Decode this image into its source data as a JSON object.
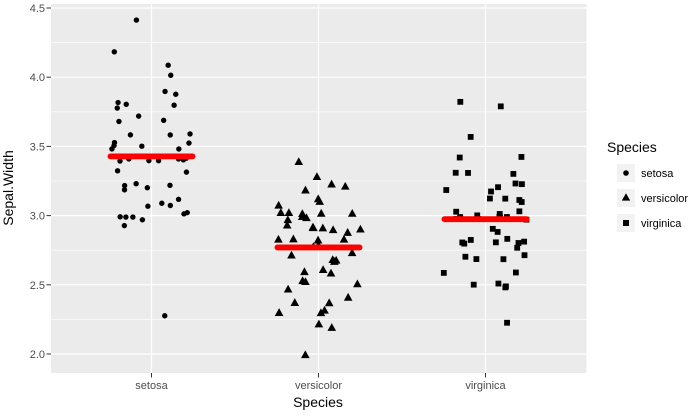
{
  "colors": {
    "panel_background": "#EBEBEB",
    "gridline": "#FFFFFF",
    "point": "#000000",
    "mean_bar": "#FF0000",
    "axis_tick_text": "#4D4D4D",
    "axis_tick_mark": "#333333",
    "axis_title_text": "#000000",
    "legend_key_background": "#F2F2F2",
    "figure_background": "#FFFFFF"
  },
  "axes": {
    "x": {
      "title": "Species",
      "tick_labels": [
        "setosa",
        "versicolor",
        "virginica"
      ]
    },
    "y": {
      "title": "Sepal.Width",
      "tick_labels": [
        "2.0",
        "2.5",
        "3.0",
        "3.5",
        "4.0",
        "4.5"
      ],
      "tick_values": [
        2.0,
        2.5,
        3.0,
        3.5,
        4.0,
        4.5
      ],
      "minor_gridline_values": [
        2.25,
        2.75,
        3.25,
        3.75,
        4.25
      ]
    }
  },
  "legend": {
    "title": "Species",
    "items": [
      {
        "label": "setosa",
        "shape": "circle"
      },
      {
        "label": "versicolor",
        "shape": "triangle"
      },
      {
        "label": "virginica",
        "shape": "square"
      }
    ]
  },
  "chart_data": {
    "type": "scatter",
    "subtype": "jitter",
    "title": "",
    "xlabel": "Species",
    "ylabel": "Sepal.Width",
    "categories": [
      "setosa",
      "versicolor",
      "virginica"
    ],
    "series": [
      {
        "name": "setosa",
        "shape": "circle",
        "color": "#000000",
        "values": [
          3.5,
          3.0,
          3.2,
          3.1,
          3.6,
          3.9,
          3.4,
          3.4,
          2.9,
          3.1,
          3.7,
          3.4,
          3.0,
          3.0,
          4.0,
          4.4,
          3.9,
          3.5,
          3.8,
          3.8,
          3.4,
          3.7,
          3.6,
          3.3,
          3.4,
          3.0,
          3.4,
          3.5,
          3.4,
          3.2,
          3.1,
          3.4,
          4.1,
          4.2,
          3.1,
          3.2,
          3.5,
          3.6,
          3.0,
          3.4,
          3.5,
          2.3,
          3.2,
          3.5,
          3.8,
          3.0,
          3.8,
          3.2,
          3.7,
          3.3
        ]
      },
      {
        "name": "versicolor",
        "shape": "triangle",
        "color": "#000000",
        "values": [
          3.2,
          3.2,
          3.1,
          2.3,
          2.8,
          2.8,
          3.3,
          2.4,
          2.9,
          2.7,
          2.0,
          3.0,
          2.2,
          2.9,
          2.9,
          3.1,
          3.0,
          2.7,
          2.2,
          2.5,
          3.2,
          2.8,
          2.5,
          2.8,
          2.9,
          3.0,
          2.8,
          3.0,
          2.9,
          2.6,
          2.4,
          2.4,
          2.7,
          2.7,
          3.0,
          3.4,
          3.1,
          2.3,
          3.0,
          2.5,
          2.6,
          3.0,
          2.6,
          2.3,
          2.7,
          3.0,
          2.9,
          2.9,
          2.5,
          2.8
        ]
      },
      {
        "name": "virginica",
        "shape": "square",
        "color": "#000000",
        "values": [
          3.3,
          2.7,
          3.0,
          2.9,
          3.0,
          3.0,
          2.5,
          2.9,
          2.5,
          3.6,
          3.2,
          2.7,
          3.0,
          2.5,
          2.8,
          3.2,
          3.0,
          3.8,
          2.6,
          2.2,
          3.2,
          2.8,
          2.8,
          2.7,
          3.3,
          3.2,
          2.8,
          3.0,
          2.8,
          3.0,
          2.8,
          3.8,
          2.8,
          2.8,
          2.6,
          3.0,
          3.4,
          3.1,
          3.0,
          3.1,
          3.1,
          3.1,
          2.7,
          3.2,
          3.3,
          3.0,
          2.5,
          3.0,
          3.4,
          3.0
        ]
      }
    ],
    "means": {
      "setosa": 3.428,
      "versicolor": 2.77,
      "virginica": 2.974
    },
    "mean_bar_color": "#FF0000",
    "ylim": [
      1.88,
      4.52
    ],
    "y_major_gridlines": [
      2.0,
      2.5,
      3.0,
      3.5,
      4.0,
      4.5
    ],
    "grid": true,
    "legend_position": "right"
  }
}
